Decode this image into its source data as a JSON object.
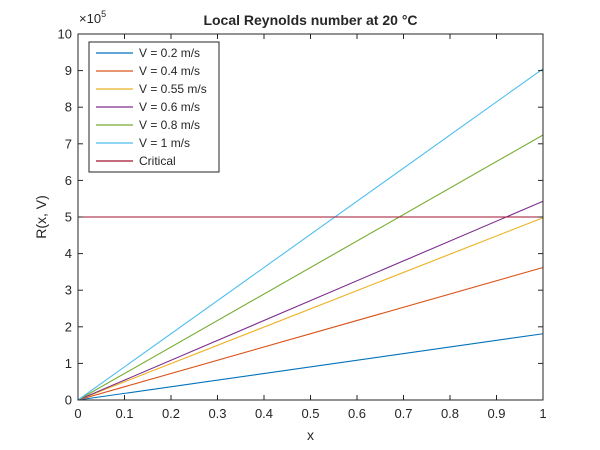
{
  "chart_data": {
    "type": "line",
    "title": "Local Reynolds number at 20 °C",
    "xlabel": "x",
    "ylabel": "R(x, V)",
    "xlim": [
      0,
      1
    ],
    "ylim": [
      0,
      1000000
    ],
    "y_exponent_label": "×10",
    "y_exponent_power": "5",
    "x_ticks": [
      0,
      0.1,
      0.2,
      0.3,
      0.4,
      0.5,
      0.6,
      0.7,
      0.8,
      0.9,
      1
    ],
    "x_tick_labels": [
      "0",
      "0.1",
      "0.2",
      "0.3",
      "0.4",
      "0.5",
      "0.6",
      "0.7",
      "0.8",
      "0.9",
      "1"
    ],
    "y_ticks": [
      0,
      100000,
      200000,
      300000,
      400000,
      500000,
      600000,
      700000,
      800000,
      900000,
      1000000
    ],
    "y_tick_labels": [
      "0",
      "1",
      "2",
      "3",
      "4",
      "5",
      "6",
      "7",
      "8",
      "9",
      "10"
    ],
    "grid": false,
    "legend_position": "top-left",
    "series": [
      {
        "name": "V = 0.2 m/s",
        "color": "#0072BD",
        "x": [
          0,
          1
        ],
        "y": [
          0,
          181000
        ]
      },
      {
        "name": "V = 0.4 m/s",
        "color": "#D95319",
        "x": [
          0,
          1
        ],
        "y": [
          0,
          362000
        ]
      },
      {
        "name": "V = 0.55 m/s",
        "color": "#EDB120",
        "x": [
          0,
          1
        ],
        "y": [
          0,
          498000
        ]
      },
      {
        "name": "V = 0.6 m/s",
        "color": "#7E2F8E",
        "x": [
          0,
          1
        ],
        "y": [
          0,
          543000
        ]
      },
      {
        "name": "V = 0.8 m/s",
        "color": "#77AC30",
        "x": [
          0,
          1
        ],
        "y": [
          0,
          724000
        ]
      },
      {
        "name": "V = 1 m/s",
        "color": "#4DBEEE",
        "x": [
          0,
          1
        ],
        "y": [
          0,
          905000
        ]
      },
      {
        "name": "Critical",
        "color": "#A2142F",
        "x": [
          0,
          1
        ],
        "y": [
          500000,
          500000
        ]
      }
    ]
  }
}
